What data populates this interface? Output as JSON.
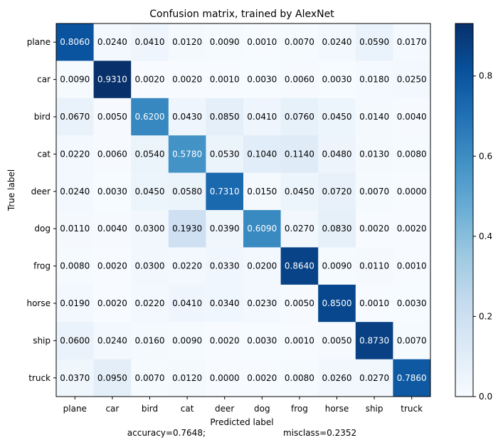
{
  "chart_data": {
    "type": "heatmap",
    "title": "Confusion matrix, trained by AlexNet",
    "xlabel": "Predicted label",
    "ylabel": "True label",
    "x_categories": [
      "plane",
      "car",
      "bird",
      "cat",
      "deer",
      "dog",
      "frog",
      "horse",
      "ship",
      "truck"
    ],
    "y_categories": [
      "plane",
      "car",
      "bird",
      "cat",
      "deer",
      "dog",
      "frog",
      "horse",
      "ship",
      "truck"
    ],
    "values": [
      [
        0.806,
        0.024,
        0.041,
        0.012,
        0.009,
        0.001,
        0.007,
        0.024,
        0.059,
        0.017
      ],
      [
        0.009,
        0.931,
        0.002,
        0.002,
        0.001,
        0.003,
        0.006,
        0.003,
        0.018,
        0.025
      ],
      [
        0.067,
        0.005,
        0.62,
        0.043,
        0.085,
        0.041,
        0.076,
        0.045,
        0.014,
        0.004
      ],
      [
        0.022,
        0.006,
        0.054,
        0.578,
        0.053,
        0.104,
        0.114,
        0.048,
        0.013,
        0.008
      ],
      [
        0.024,
        0.003,
        0.045,
        0.058,
        0.731,
        0.015,
        0.045,
        0.072,
        0.007,
        0.0
      ],
      [
        0.011,
        0.004,
        0.03,
        0.193,
        0.039,
        0.609,
        0.027,
        0.083,
        0.002,
        0.002
      ],
      [
        0.008,
        0.002,
        0.03,
        0.022,
        0.033,
        0.02,
        0.864,
        0.009,
        0.011,
        0.001
      ],
      [
        0.019,
        0.002,
        0.022,
        0.041,
        0.034,
        0.023,
        0.005,
        0.85,
        0.001,
        0.003
      ],
      [
        0.06,
        0.024,
        0.016,
        0.009,
        0.002,
        0.003,
        0.001,
        0.005,
        0.873,
        0.007
      ],
      [
        0.037,
        0.095,
        0.007,
        0.012,
        0.0,
        0.002,
        0.008,
        0.026,
        0.027,
        0.786
      ]
    ],
    "cell_label_decimals": 4,
    "colormap": "Blues",
    "colorbar": {
      "range": [
        0,
        0.931
      ],
      "ticks": [
        "0.0",
        "0.2",
        "0.4",
        "0.6",
        "0.8"
      ]
    },
    "footer_left": "accuracy=0.7648;",
    "footer_right": "misclass=0.2352"
  }
}
